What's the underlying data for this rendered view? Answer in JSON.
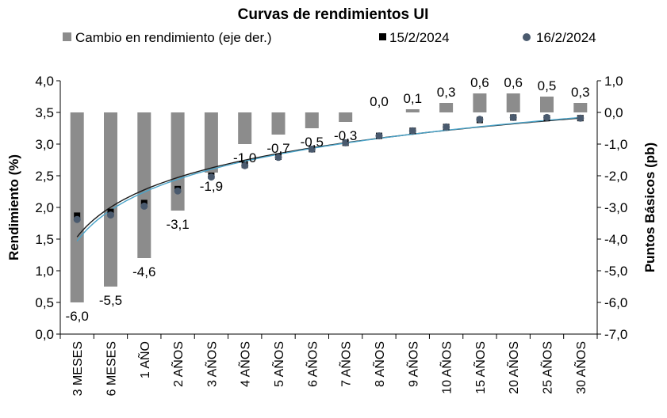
{
  "chart_data": {
    "type": "bar+scatter",
    "title": "Curvas de rendimientos UI",
    "legend_position": "top",
    "legend": {
      "bars": "Cambio en rendimiento (eje der.)",
      "series1": "15/2/2024",
      "series2": "16/2/2024"
    },
    "ylabel_left": "Rendimiento (%)",
    "ylabel_right": "Puntos Básicos (pb)",
    "ylim_left": [
      0,
      4
    ],
    "yticks_left": [
      "0,0",
      "0,5",
      "1,0",
      "1,5",
      "2,0",
      "2,5",
      "3,0",
      "3,5",
      "4,0"
    ],
    "ylim_right": [
      -7,
      1
    ],
    "yticks_right": [
      "-7,0",
      "-6,0",
      "-5,0",
      "-4,0",
      "-3,0",
      "-2,0",
      "-1,0",
      "0,0",
      "1,0"
    ],
    "categories": [
      "3 MESES",
      "6 MESES",
      "1 AÑO",
      "2 AÑOS",
      "3 AÑOS",
      "4 AÑOS",
      "5 AÑOS",
      "6 AÑOS",
      "7 AÑOS",
      "8 AÑOS",
      "9 AÑOS",
      "10 AÑOS",
      "15 AÑOS",
      "20 AÑOS",
      "25 AÑOS",
      "30 AÑOS"
    ],
    "bar_values": [
      -6.0,
      -5.5,
      -4.6,
      -3.1,
      -1.9,
      -1.0,
      -0.7,
      -0.5,
      -0.3,
      0.0,
      0.1,
      0.3,
      0.6,
      0.6,
      0.5,
      0.3
    ],
    "bar_labels": [
      "-6,0",
      "-5,5",
      "-4,6",
      "-3,1",
      "-1,9",
      "-1,0",
      "-0,7",
      "-0,5",
      "-0,3",
      "0,0",
      "0,1",
      "0,3",
      "0,6",
      "0,6",
      "0,5",
      "0,3"
    ],
    "series": [
      {
        "name": "15/2/2024",
        "values": [
          1.87,
          1.93,
          2.07,
          2.29,
          2.5,
          2.67,
          2.8,
          2.92,
          3.02,
          3.13,
          3.21,
          3.27,
          3.38,
          3.42,
          3.41,
          3.41
        ]
      },
      {
        "name": "16/2/2024",
        "values": [
          1.81,
          1.88,
          2.02,
          2.26,
          2.48,
          2.66,
          2.79,
          2.92,
          3.02,
          3.13,
          3.21,
          3.27,
          3.39,
          3.42,
          3.42,
          3.41
        ]
      }
    ],
    "colors": {
      "bars": "#8c8c8c",
      "series1": "#000000",
      "series2": "#4a5a6e",
      "trend1": "#1a1a1a",
      "trend2": "#4aa3c8"
    }
  }
}
